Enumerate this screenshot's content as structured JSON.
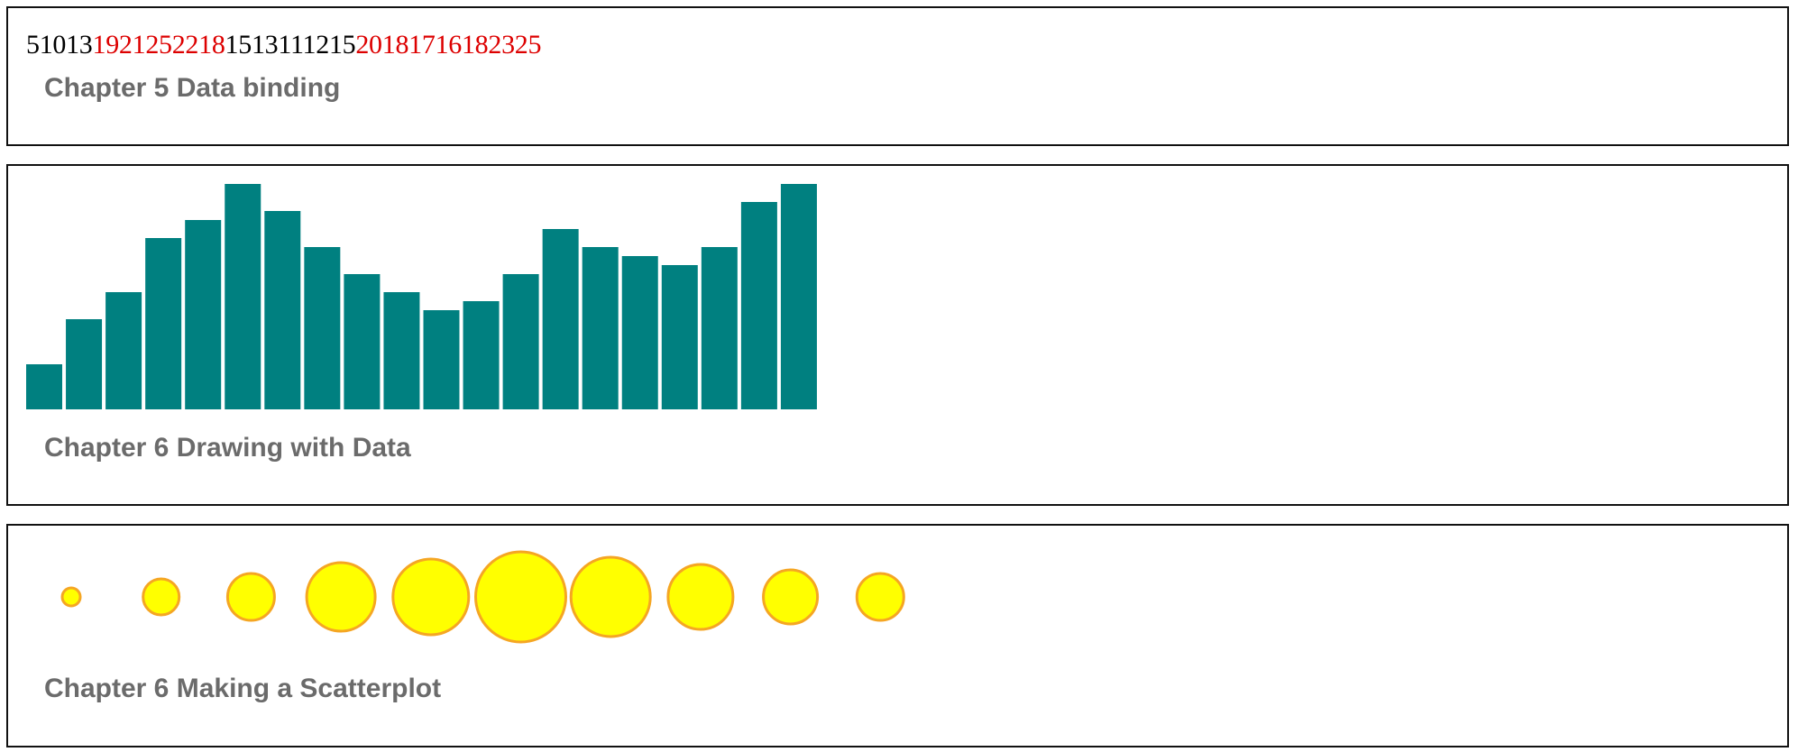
{
  "headings": {
    "data_binding": "Chapter 5 Data binding",
    "drawing": "Chapter 6 Drawing with Data",
    "scatter": "Chapter 6 Making a Scatterplot"
  },
  "colors": {
    "low_text": "#000000",
    "high_text": "#dd0000",
    "bar_fill": "#008080",
    "circle_fill": "#ffff00",
    "circle_stroke": "#f5a623",
    "heading": "#6b6b6b"
  },
  "chart_data": [
    {
      "type": "text",
      "values": [
        5,
        10,
        13,
        19,
        21,
        25,
        22,
        18,
        15,
        13,
        11,
        12,
        15,
        20,
        18,
        17,
        16,
        18,
        23,
        25
      ],
      "highlight_rule": "values greater than 15 shown in red"
    },
    {
      "type": "bar",
      "values": [
        5,
        10,
        13,
        19,
        21,
        25,
        22,
        18,
        15,
        13,
        11,
        12,
        15,
        20,
        18,
        17,
        16,
        18,
        23,
        25
      ],
      "ylim": [
        0,
        25
      ],
      "grid": false,
      "legend": "none"
    },
    {
      "type": "scatter",
      "values": [
        5,
        10,
        13,
        19,
        21,
        25,
        22,
        18,
        15,
        13
      ],
      "encoding": "circle radius proportional to value",
      "grid": false,
      "legend": "none"
    }
  ]
}
